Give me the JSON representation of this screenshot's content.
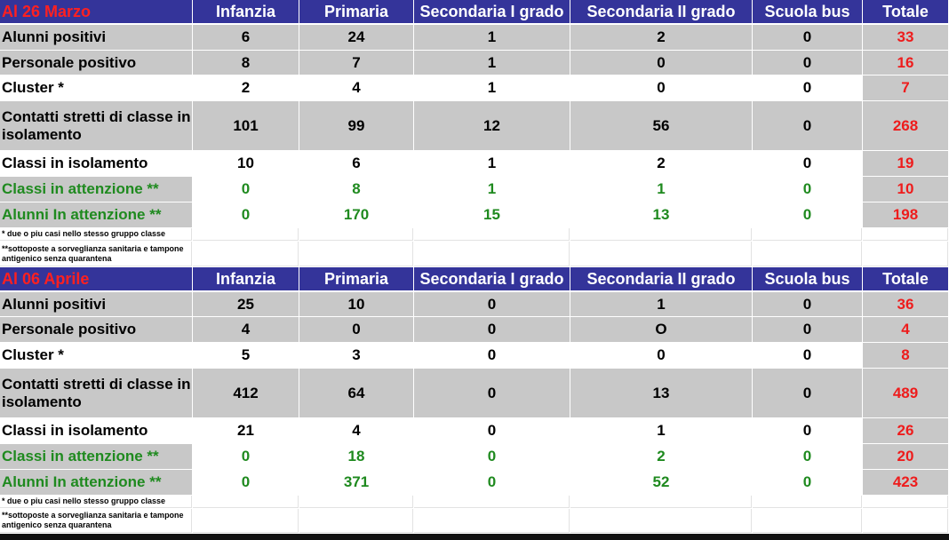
{
  "tables": [
    {
      "header": [
        "Al 26 Marzo",
        "Infanzia",
        "Primaria",
        "Secondaria I grado",
        "Secondaria II grado",
        "Scuola bus",
        "Totale"
      ],
      "rows": [
        [
          "Alunni positivi",
          6,
          24,
          1,
          2,
          0,
          33
        ],
        [
          "Personale positivo",
          8,
          7,
          1,
          0,
          0,
          16
        ],
        [
          "Cluster *",
          2,
          4,
          1,
          0,
          0,
          7
        ],
        [
          "Contatti stretti di classe in isolamento",
          101,
          99,
          12,
          56,
          0,
          268
        ],
        [
          "Classi in isolamento",
          10,
          6,
          1,
          2,
          0,
          19
        ],
        [
          "Classi in attenzione **",
          0,
          8,
          1,
          1,
          0,
          10
        ],
        [
          "Alunni In attenzione **",
          0,
          170,
          15,
          13,
          0,
          198
        ]
      ],
      "notes": [
        "* due o piu casi  nello stesso gruppo classe",
        "**sottoposte a sorveglianza sanitaria e tampone antigenico senza quarantena"
      ]
    },
    {
      "header": [
        "Al 06 Aprile",
        "Infanzia",
        "Primaria",
        "Secondaria I grado",
        "Secondaria II grado",
        "Scuola bus",
        "Totale"
      ],
      "rows": [
        [
          "Alunni positivi",
          25,
          10,
          0,
          1,
          0,
          36
        ],
        [
          "Personale positivo",
          4,
          0,
          0,
          "O",
          0,
          4
        ],
        [
          "Cluster *",
          5,
          3,
          0,
          0,
          0,
          8
        ],
        [
          "Contatti stretti di classe in isolamento",
          412,
          64,
          0,
          13,
          0,
          489
        ],
        [
          "Classi in isolamento",
          21,
          4,
          0,
          1,
          0,
          26
        ],
        [
          "Classi in attenzione **",
          0,
          18,
          0,
          2,
          0,
          20
        ],
        [
          "Alunni In attenzione **",
          0,
          371,
          0,
          52,
          0,
          423
        ]
      ],
      "notes": [
        "* due o piu casi  nello stesso gruppo classe",
        "**sottoposte a sorveglianza sanitaria e tampone antigenico senza quarantena"
      ]
    }
  ]
}
